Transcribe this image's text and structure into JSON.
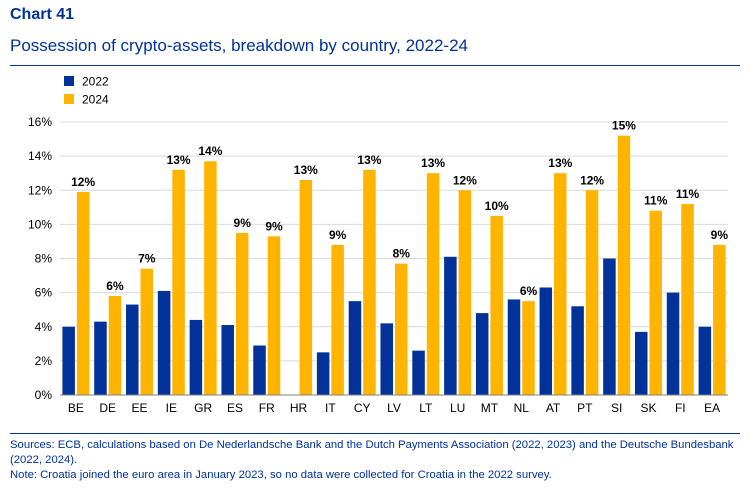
{
  "header": {
    "chart_number": "Chart 41",
    "title": "Possession of crypto-assets, breakdown by country, 2022-24"
  },
  "notes": {
    "sources": "Sources: ECB, calculations based on De Nederlandsche Bank and the Dutch Payments Association (2022, 2023) and the Deutsche Bundesbank (2022, 2024).",
    "note": "Note: Croatia joined the euro area in January 2023, so no data were collected for Croatia in the 2022 survey."
  },
  "colors": {
    "series_2022": "#003299",
    "series_2024": "#FFB400",
    "grid": "#d9d9d9",
    "text": "#000000"
  },
  "chart_data": {
    "type": "bar",
    "title": "Possession of crypto-assets, breakdown by country, 2022-24",
    "xlabel": "",
    "ylabel": "",
    "ylim": [
      0,
      16
    ],
    "yticks": [
      0,
      2,
      4,
      6,
      8,
      10,
      12,
      14,
      16
    ],
    "ytick_format": "%",
    "grid": true,
    "legend_position": "top-left",
    "categories": [
      "BE",
      "DE",
      "EE",
      "IE",
      "GR",
      "ES",
      "FR",
      "HR",
      "IT",
      "CY",
      "LV",
      "LT",
      "LU",
      "MT",
      "NL",
      "AT",
      "PT",
      "SI",
      "SK",
      "FI",
      "EA"
    ],
    "series": [
      {
        "name": "2022",
        "color": "#003299",
        "values": [
          4.0,
          4.3,
          5.3,
          6.1,
          4.4,
          4.1,
          2.9,
          null,
          2.5,
          5.5,
          4.2,
          2.6,
          8.1,
          4.8,
          5.6,
          6.3,
          5.2,
          8.0,
          3.7,
          6.0,
          4.0
        ]
      },
      {
        "name": "2024",
        "color": "#FFB400",
        "values": [
          11.9,
          5.8,
          7.4,
          13.2,
          13.7,
          9.5,
          9.3,
          12.6,
          8.8,
          13.2,
          7.7,
          13.0,
          12.0,
          10.5,
          5.5,
          13.0,
          12.0,
          15.2,
          10.8,
          11.2,
          8.8
        ]
      }
    ],
    "data_labels_2024": [
      "12%",
      "6%",
      "7%",
      "13%",
      "14%",
      "9%",
      "9%",
      "13%",
      "9%",
      "13%",
      "8%",
      "13%",
      "12%",
      "10%",
      "6%",
      "13%",
      "12%",
      "15%",
      "11%",
      "11%",
      "9%"
    ]
  }
}
